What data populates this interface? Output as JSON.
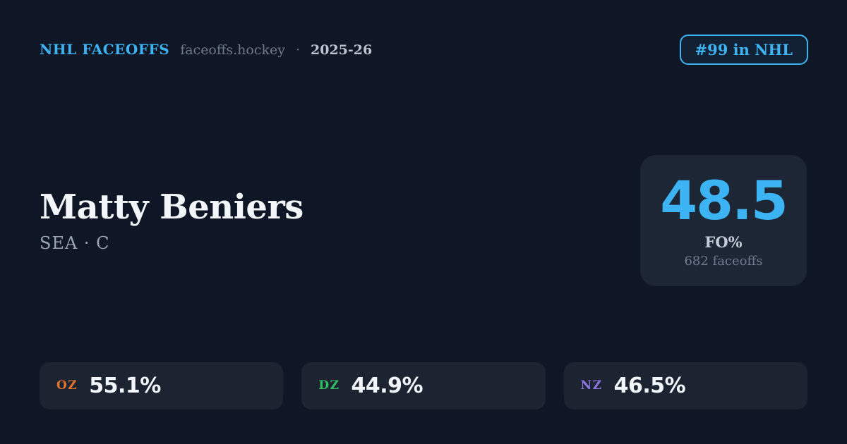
{
  "colors": {
    "background": "#0f1625",
    "panel": "#1d2634",
    "pill": "#1c2432",
    "accent_blue": "#3cb4f4",
    "name_white": "#f3f6f9",
    "muted_gray": "#6e7a89",
    "oz_orange": "#e2732d",
    "dz_green": "#2fbe62",
    "nz_purple": "#8f75e6"
  },
  "header": {
    "brand": "NHL FACEOFFS",
    "site": "faceoffs.hockey",
    "separator": "·",
    "season": "2025-26",
    "rank_badge": "#99 in NHL"
  },
  "player": {
    "name": "Matty Beniers",
    "team_position": "SEA · C"
  },
  "faceoff_summary": {
    "value": "48.5",
    "label": "FO%",
    "subtext": "682 faceoffs"
  },
  "zone_stats": [
    {
      "code": "OZ",
      "value": "55.1%",
      "color": "#e2732d"
    },
    {
      "code": "DZ",
      "value": "44.9%",
      "color": "#2fbe62"
    },
    {
      "code": "NZ",
      "value": "46.5%",
      "color": "#8f75e6"
    }
  ]
}
